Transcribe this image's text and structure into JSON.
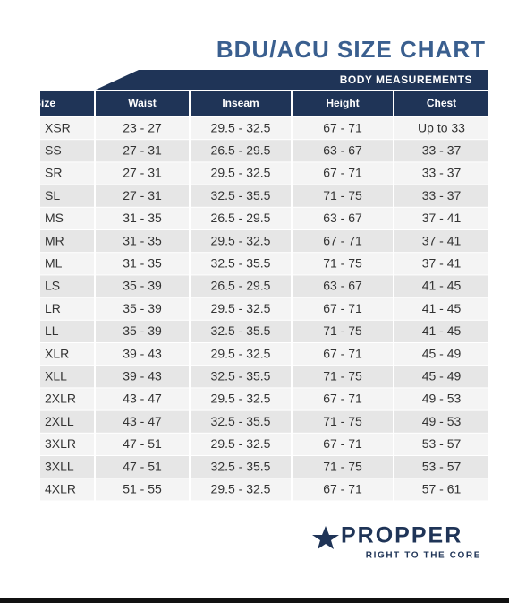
{
  "header": {
    "title": "BDU/ACU SIZE CHART"
  },
  "table": {
    "group_header": "BODY MEASUREMENTS",
    "columns": [
      "Size",
      "Waist",
      "Inseam",
      "Height",
      "Chest"
    ],
    "rows": [
      [
        "XSR",
        "23 - 27",
        "29.5 - 32.5",
        "67 - 71",
        "Up to 33"
      ],
      [
        "SS",
        "27 - 31",
        "26.5 - 29.5",
        "63 - 67",
        "33 - 37"
      ],
      [
        "SR",
        "27 - 31",
        "29.5 - 32.5",
        "67 - 71",
        "33 - 37"
      ],
      [
        "SL",
        "27 - 31",
        "32.5 - 35.5",
        "71 - 75",
        "33 - 37"
      ],
      [
        "MS",
        "31 - 35",
        "26.5 - 29.5",
        "63 - 67",
        "37 - 41"
      ],
      [
        "MR",
        "31 - 35",
        "29.5 - 32.5",
        "67 - 71",
        "37 - 41"
      ],
      [
        "ML",
        "31 - 35",
        "32.5 - 35.5",
        "71 - 75",
        "37 - 41"
      ],
      [
        "LS",
        "35 - 39",
        "26.5 - 29.5",
        "63 - 67",
        "41 - 45"
      ],
      [
        "LR",
        "35 - 39",
        "29.5 - 32.5",
        "67 - 71",
        "41 - 45"
      ],
      [
        "LL",
        "35 - 39",
        "32.5 - 35.5",
        "71 - 75",
        "41 - 45"
      ],
      [
        "XLR",
        "39 - 43",
        "29.5 - 32.5",
        "67 - 71",
        "45 - 49"
      ],
      [
        "XLL",
        "39 - 43",
        "32.5 - 35.5",
        "71 - 75",
        "45 - 49"
      ],
      [
        "2XLR",
        "43 - 47",
        "29.5 - 32.5",
        "67 - 71",
        "49 - 53"
      ],
      [
        "2XLL",
        "43 - 47",
        "32.5 - 35.5",
        "71 - 75",
        "49 - 53"
      ],
      [
        "3XLR",
        "47 - 51",
        "29.5 - 32.5",
        "67 - 71",
        "53 - 57"
      ],
      [
        "3XLL",
        "47 - 51",
        "32.5 - 35.5",
        "71 - 75",
        "53 - 57"
      ],
      [
        "4XLR",
        "51 - 55",
        "29.5 - 32.5",
        "67 - 71",
        "57 - 61"
      ]
    ]
  },
  "logo": {
    "name": "PROPPER",
    "tagline": "RIGHT TO THE CORE"
  }
}
